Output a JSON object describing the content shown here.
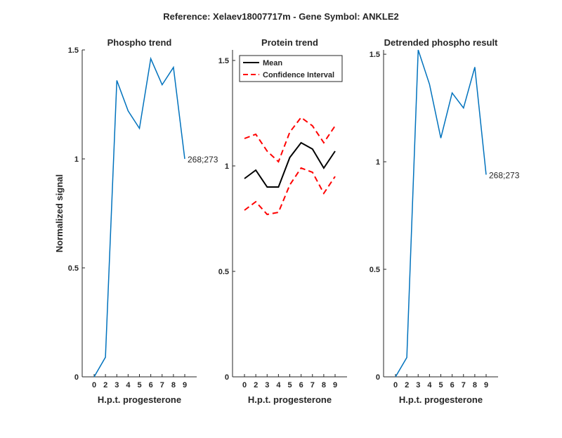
{
  "chart_data": {
    "suptitle": "Reference:  Xelaev18007717m - Gene Symbol:  ANKLE2",
    "shared": {
      "categories": [
        "0",
        "2",
        "3",
        "4",
        "5",
        "6",
        "7",
        "8",
        "9"
      ],
      "xlabel": "H.p.t. progesterone"
    },
    "charts": [
      {
        "type": "line",
        "title": "Phospho trend",
        "ylabel": "Normalized signal",
        "ylim": [
          0,
          1.5
        ],
        "yticks": [
          "0",
          "0.5",
          "1",
          "1.5"
        ],
        "series": [
          {
            "name": "Phospho",
            "color": "#0072BD",
            "dash": "solid",
            "values": [
              0.0,
              0.09,
              1.36,
              1.22,
              1.14,
              1.46,
              1.34,
              1.42,
              1.0
            ]
          }
        ],
        "end_label": "268;273"
      },
      {
        "type": "line",
        "title": "Protein trend",
        "ylabel": "",
        "ylim": [
          0,
          1.55
        ],
        "yticks": [
          "0",
          "0.5",
          "1",
          "1.5"
        ],
        "legend": {
          "position": "top-left",
          "entries": [
            "Mean",
            "Confidence Interval"
          ]
        },
        "series": [
          {
            "name": "Mean",
            "color": "#000000",
            "dash": "solid",
            "values": [
              0.94,
              0.98,
              0.9,
              0.9,
              1.04,
              1.11,
              1.08,
              0.99,
              1.07
            ]
          },
          {
            "name": "Confidence Interval upper",
            "color": "#FF0000",
            "dash": "dashed",
            "values": [
              1.13,
              1.15,
              1.07,
              1.02,
              1.16,
              1.23,
              1.19,
              1.11,
              1.19
            ]
          },
          {
            "name": "Confidence Interval lower",
            "color": "#FF0000",
            "dash": "dashed",
            "values": [
              0.79,
              0.83,
              0.77,
              0.78,
              0.91,
              0.99,
              0.97,
              0.87,
              0.95
            ]
          }
        ]
      },
      {
        "type": "line",
        "title": "Detrended phospho result",
        "ylabel": "",
        "ylim": [
          0,
          1.52
        ],
        "yticks": [
          "0",
          "0.5",
          "1",
          "1.5"
        ],
        "series": [
          {
            "name": "Detrended phospho",
            "color": "#0072BD",
            "dash": "solid",
            "values": [
              0.0,
              0.09,
              1.52,
              1.36,
              1.11,
              1.32,
              1.25,
              1.44,
              0.94
            ]
          }
        ],
        "end_label": "268;273"
      }
    ]
  }
}
